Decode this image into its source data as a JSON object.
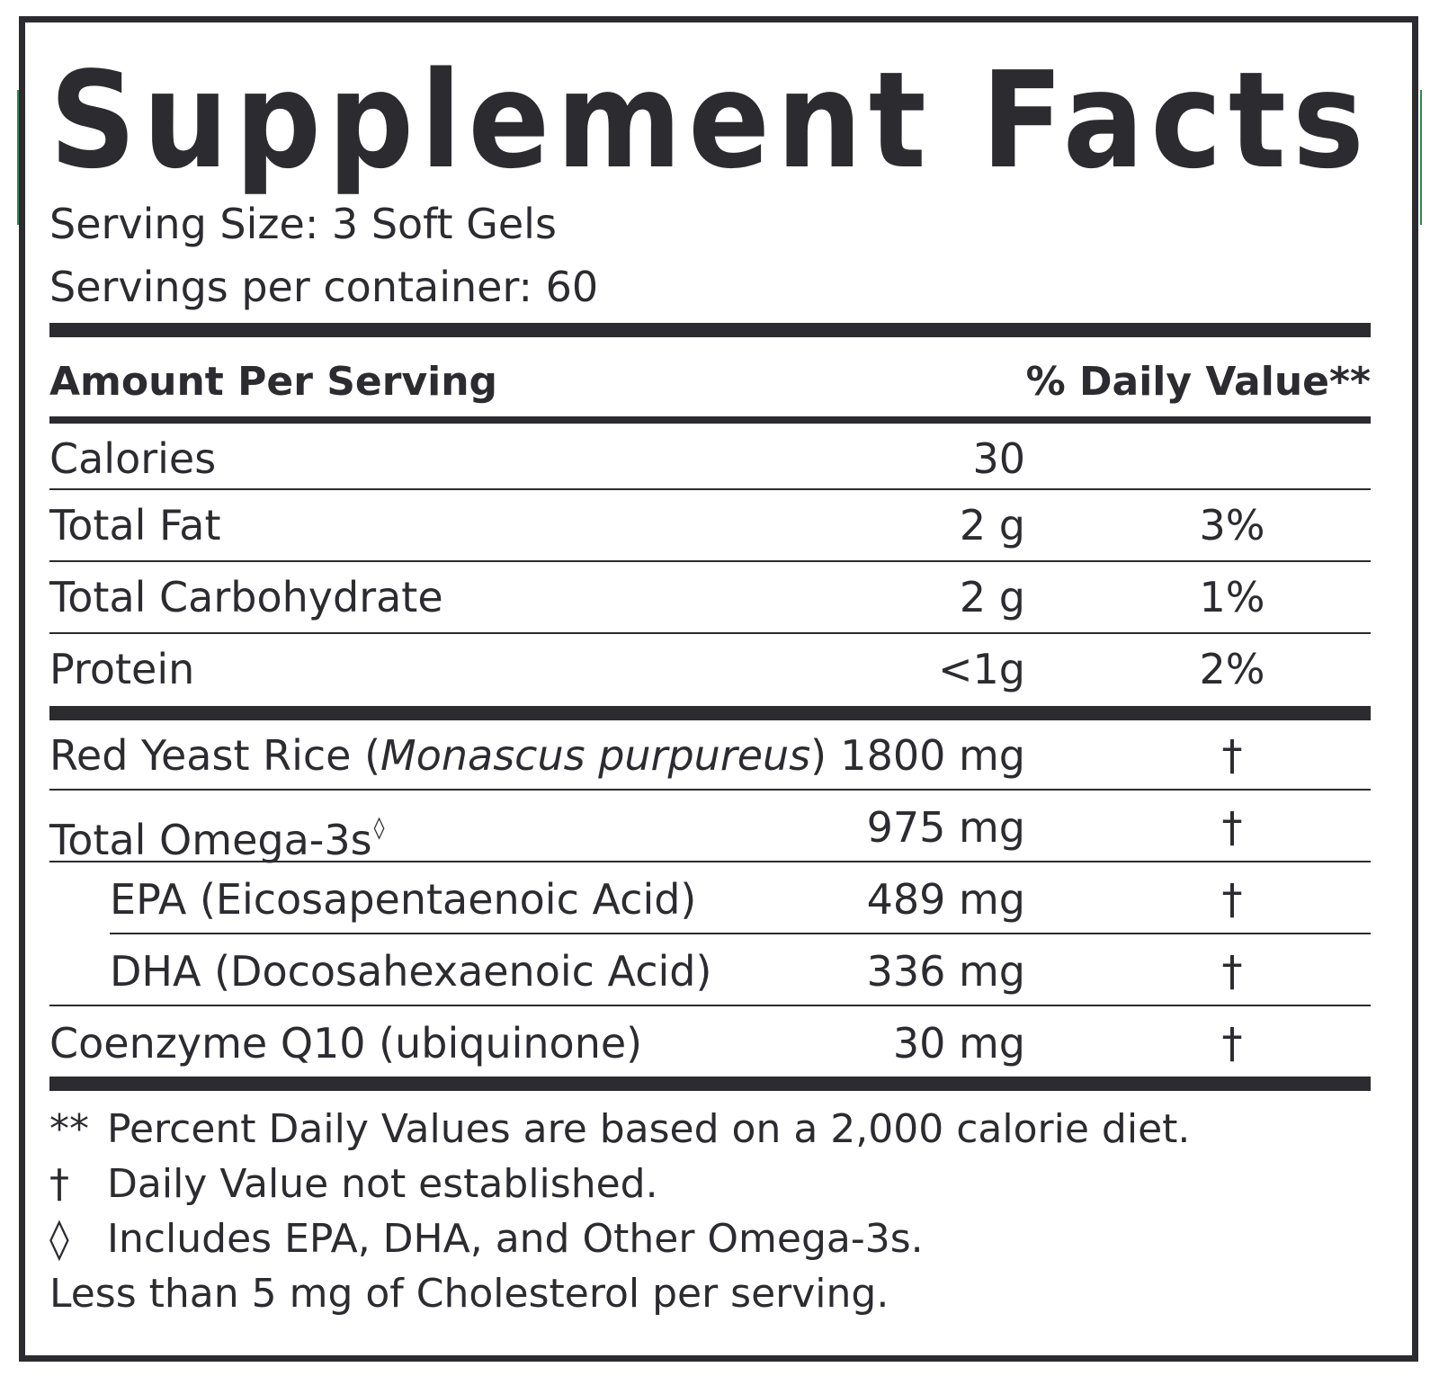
{
  "label": {
    "title": "Supplement Facts",
    "serving_size": "Serving Size: 3 Soft Gels",
    "servings_per_container": "Servings per container: 60",
    "header_left": "Amount Per Serving",
    "header_right": "% Daily Value**",
    "calories": {
      "name": "Calories",
      "amount": "30",
      "dv": ""
    },
    "nutrients": [
      {
        "name": "Total Fat",
        "amount": "2 g",
        "dv": "3%"
      },
      {
        "name": "Total Carbohydrate",
        "amount": "2 g",
        "dv": "1%"
      },
      {
        "name": "Protein",
        "amount": "<1g",
        "dv": "2%"
      }
    ],
    "ingredients": [
      {
        "name": "Red Yeast Rice (",
        "name_italic": "Monascus purpureus",
        "name_end": ")",
        "amount": "1800 mg",
        "dv": "†"
      },
      {
        "name": "Total Omega-3s",
        "marker": "◊",
        "amount": "975 mg",
        "dv": "†"
      },
      {
        "name": "EPA (Eicosapentaenoic Acid)",
        "amount": "489 mg",
        "dv": "†"
      },
      {
        "name": "DHA (Docosahexaenoic Acid)",
        "amount": "336 mg",
        "dv": "†"
      },
      {
        "name": "Coenzyme Q10 (ubiquinone)",
        "amount": "30 mg",
        "dv": "†"
      }
    ],
    "footnotes": [
      {
        "mark": "**",
        "text": "Percent Daily Values are based on a 2,000 calorie diet."
      },
      {
        "mark": "†",
        "text": "Daily Value not established."
      },
      {
        "mark": "◊",
        "text": "Includes EPA, DHA, and Other Omega-3s."
      },
      {
        "mark": "",
        "text": "Less than 5 mg of Cholesterol per serving."
      }
    ],
    "colors": {
      "ink": "#2b2b30",
      "background": "#ffffff",
      "edge_accent": "#2f8a4f"
    }
  }
}
